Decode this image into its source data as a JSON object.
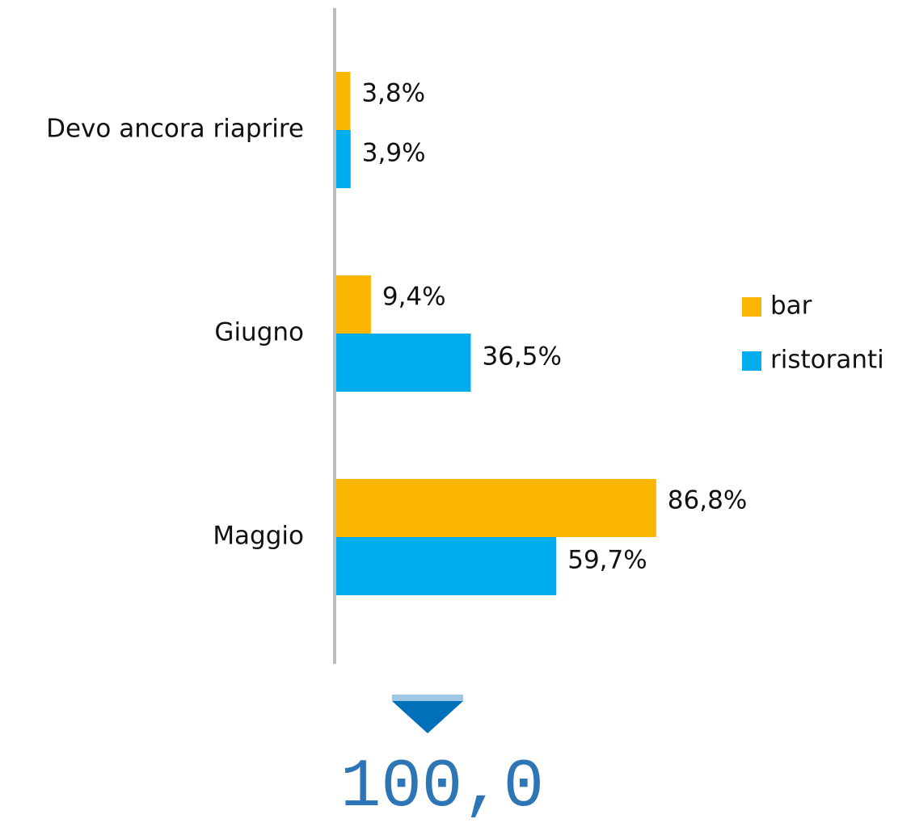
{
  "chart_data": {
    "type": "bar",
    "orientation": "horizontal",
    "categories": [
      "Devo ancora riaprire",
      "Giugno",
      "Maggio"
    ],
    "series": [
      {
        "name": "bar",
        "color": "#f9b500",
        "values": [
          3.8,
          9.4,
          86.8
        ],
        "value_labels": [
          "3,8%",
          "9,4%",
          "86,8%"
        ]
      },
      {
        "name": "ristoranti",
        "color": "#00aeef",
        "values": [
          3.9,
          36.5,
          59.7
        ],
        "value_labels": [
          "3,9%",
          "36,5%",
          "59,7%"
        ]
      }
    ],
    "xlim": [
      0,
      100
    ],
    "legend": "right",
    "annotation": "100,0"
  }
}
